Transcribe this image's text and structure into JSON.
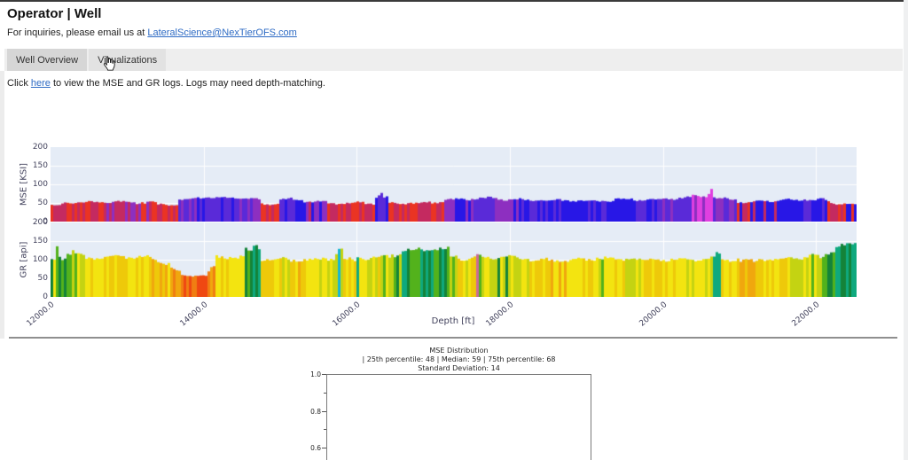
{
  "window": {
    "title": "Operator | Well",
    "contact_prefix": "For inquiries, please email us at ",
    "contact_email": "LateralScience@NexTierOFS.com"
  },
  "tabs": {
    "items": [
      {
        "label": "Well Overview",
        "active": true
      },
      {
        "label": "Visualizations",
        "active": false,
        "cursor_over": true
      }
    ]
  },
  "note": {
    "prefix": "Click ",
    "link": "here",
    "suffix": " to view the MSE and GR logs. Logs may need depth-matching."
  },
  "colors": {
    "link": "#2e6bc4",
    "plot_background": "#e5ecf6",
    "gridline": "#ffffff",
    "divider": "#8f8f8f",
    "mse_palette": {
      "red": "#ea3423",
      "crimson": "#c42a60",
      "purple": "#8d2fc0",
      "violet": "#5a2ad8",
      "blue": "#2817e6",
      "magenta": "#e03fe0"
    },
    "gr_palette": {
      "yellow": "#f3e410",
      "gold": "#eec90a",
      "olive": "#c4d312",
      "amber": "#f0a70e",
      "orange": "#f07e12",
      "redorange": "#ef4812",
      "green": "#53b21c",
      "darkgreen": "#148339",
      "teal": "#0fa97e",
      "cyan": "#14b6d6",
      "pink": "#c96a9a"
    }
  },
  "chart_data": [
    {
      "id": "mse-log",
      "type": "bar",
      "ylabel": "MSE [KSI]",
      "ylim": [
        0,
        200
      ],
      "yticks": [
        0,
        50,
        100,
        150,
        200
      ],
      "ytick_labels": [
        "0",
        "50",
        "100",
        "150",
        "200"
      ],
      "xlim": [
        12000,
        22530
      ],
      "xticks": [
        12000,
        14000,
        16000,
        18000,
        20000,
        22000
      ],
      "xtick_labels": [
        "12000.0",
        "14000.0",
        "16000.0",
        "18000.0",
        "20000.0",
        "22000.0"
      ],
      "grid": true,
      "palette": "mse_palette",
      "seed": 7.3,
      "segment_format": [
        "depth_start_ft",
        "depth_end_ft",
        "value_start",
        "value_end",
        "noise_amplitude",
        "bar_colors"
      ],
      "segments": [
        [
          12000,
          12160,
          42,
          46,
          5,
          [
            "red",
            "crimson"
          ]
        ],
        [
          12160,
          12700,
          50,
          52,
          4,
          [
            "red",
            "crimson"
          ]
        ],
        [
          12700,
          13060,
          53,
          53,
          4,
          [
            "crimson",
            "purple"
          ]
        ],
        [
          13060,
          13400,
          51,
          51,
          5,
          [
            "purple",
            "crimson",
            "red"
          ]
        ],
        [
          13400,
          13660,
          46,
          46,
          4,
          [
            "red",
            "crimson"
          ]
        ],
        [
          13660,
          13920,
          58,
          62,
          5,
          [
            "purple",
            "violet"
          ]
        ],
        [
          13920,
          14480,
          65,
          65,
          4,
          [
            "blue",
            "violet"
          ]
        ],
        [
          14480,
          14760,
          62,
          58,
          4,
          [
            "violet",
            "purple"
          ]
        ],
        [
          14760,
          14990,
          47,
          47,
          4,
          [
            "red",
            "crimson"
          ]
        ],
        [
          14990,
          15290,
          60,
          60,
          5,
          [
            "blue",
            "violet"
          ]
        ],
        [
          15290,
          15620,
          54,
          54,
          4,
          [
            "crimson",
            "purple",
            "blue"
          ]
        ],
        [
          15620,
          15990,
          49,
          49,
          4,
          [
            "red",
            "crimson"
          ]
        ],
        [
          15990,
          16250,
          50,
          50,
          5,
          [
            "red",
            "crimson"
          ]
        ],
        [
          16250,
          16330,
          62,
          78,
          8,
          [
            "blue",
            "violet"
          ]
        ],
        [
          16330,
          16430,
          70,
          56,
          8,
          [
            "blue",
            "violet"
          ]
        ],
        [
          16430,
          16910,
          50,
          50,
          4,
          [
            "red",
            "crimson"
          ]
        ],
        [
          16910,
          17160,
          52,
          52,
          5,
          [
            "red",
            "crimson"
          ]
        ],
        [
          17160,
          17510,
          59,
          61,
          5,
          [
            "blue",
            "purple"
          ]
        ],
        [
          17510,
          17820,
          63,
          63,
          5,
          [
            "violet",
            "purple"
          ]
        ],
        [
          17820,
          18160,
          62,
          60,
          6,
          [
            "purple",
            "blue"
          ]
        ],
        [
          18160,
          18660,
          58,
          58,
          4,
          [
            "blue",
            "violet"
          ]
        ],
        [
          18660,
          19310,
          56,
          56,
          4,
          [
            "blue",
            "blue",
            "violet"
          ]
        ],
        [
          19310,
          19630,
          58,
          62,
          7,
          [
            "blue"
          ]
        ],
        [
          19630,
          20010,
          58,
          58,
          4,
          [
            "blue",
            "violet"
          ]
        ],
        [
          20010,
          20360,
          62,
          64,
          5,
          [
            "purple",
            "violet"
          ]
        ],
        [
          20360,
          20560,
          66,
          70,
          6,
          [
            "magenta",
            "purple"
          ]
        ],
        [
          20560,
          20650,
          74,
          88,
          10,
          [
            "magenta"
          ]
        ],
        [
          20650,
          20960,
          64,
          60,
          5,
          [
            "purple",
            "violet"
          ]
        ],
        [
          20960,
          21210,
          52,
          52,
          5,
          [
            "crimson",
            "red",
            "blue"
          ]
        ],
        [
          21210,
          21510,
          55,
          55,
          4,
          [
            "red",
            "blue",
            "crimson"
          ]
        ],
        [
          21510,
          21810,
          58,
          58,
          4,
          [
            "blue"
          ]
        ],
        [
          21810,
          22160,
          60,
          58,
          5,
          [
            "blue",
            "violet"
          ]
        ],
        [
          22160,
          22360,
          52,
          48,
          5,
          [
            "red",
            "crimson"
          ]
        ],
        [
          22360,
          22530,
          50,
          46,
          5,
          [
            "red",
            "blue"
          ]
        ]
      ]
    },
    {
      "id": "gr-log",
      "type": "bar",
      "ylabel": "GR [api]",
      "ylim": [
        0,
        200
      ],
      "yticks": [
        0,
        50,
        100,
        150,
        200
      ],
      "ytick_labels": [
        "0",
        "50",
        "100",
        "150",
        "200"
      ],
      "xlim": [
        12000,
        22530
      ],
      "xticks": [
        12000,
        14000,
        16000,
        18000,
        20000,
        22000
      ],
      "xtick_labels": [
        "12000.0",
        "14000.0",
        "16000.0",
        "18000.0",
        "20000.0",
        "22000.0"
      ],
      "xlabel": "Depth [ft]",
      "grid": true,
      "palette": "gr_palette",
      "seed": 2.8,
      "segment_format": [
        "depth_start_ft",
        "depth_end_ft",
        "value_start",
        "value_end",
        "noise_amplitude",
        "bar_colors"
      ],
      "segments": [
        [
          12000,
          12060,
          95,
          95,
          14,
          [
            "olive",
            "yellow",
            "darkgreen"
          ]
        ],
        [
          12060,
          12110,
          135,
          150,
          15,
          [
            "teal",
            "green"
          ]
        ],
        [
          12110,
          12210,
          108,
          108,
          18,
          [
            "green",
            "olive",
            "darkgreen"
          ]
        ],
        [
          12210,
          12330,
          118,
          118,
          16,
          [
            "teal",
            "green",
            "olive"
          ]
        ],
        [
          12330,
          12440,
          112,
          112,
          10,
          [
            "green",
            "olive",
            "yellow"
          ]
        ],
        [
          12440,
          12710,
          105,
          105,
          6,
          [
            "yellow",
            "gold"
          ]
        ],
        [
          12710,
          13010,
          108,
          108,
          6,
          [
            "yellow",
            "gold",
            "olive"
          ]
        ],
        [
          13010,
          13310,
          107,
          107,
          6,
          [
            "yellow",
            "gold"
          ]
        ],
        [
          13310,
          13560,
          100,
          88,
          7,
          [
            "yellow",
            "amber",
            "gold"
          ]
        ],
        [
          13560,
          13700,
          82,
          62,
          7,
          [
            "orange",
            "amber"
          ]
        ],
        [
          13700,
          14060,
          57,
          57,
          5,
          [
            "redorange",
            "orange"
          ]
        ],
        [
          14060,
          14170,
          62,
          92,
          8,
          [
            "orange",
            "amber"
          ]
        ],
        [
          14170,
          14450,
          108,
          108,
          7,
          [
            "yellow",
            "gold"
          ]
        ],
        [
          14450,
          14550,
          104,
          104,
          9,
          [
            "olive",
            "yellow"
          ]
        ],
        [
          14550,
          14650,
          122,
          122,
          13,
          [
            "darkgreen",
            "green"
          ]
        ],
        [
          14650,
          14760,
          138,
          138,
          13,
          [
            "teal",
            "darkgreen"
          ]
        ],
        [
          14760,
          15010,
          100,
          100,
          7,
          [
            "yellow",
            "gold"
          ]
        ],
        [
          15010,
          15130,
          104,
          104,
          9,
          [
            "yellow",
            "olive"
          ]
        ],
        [
          15130,
          15270,
          99,
          99,
          7,
          [
            "yellow",
            "gold",
            "amber"
          ]
        ],
        [
          15270,
          15490,
          100,
          100,
          7,
          [
            "yellow",
            "gold"
          ]
        ],
        [
          15490,
          15710,
          104,
          104,
          8,
          [
            "yellow",
            "olive"
          ]
        ],
        [
          15710,
          15830,
          120,
          120,
          25,
          [
            "cyan",
            "teal",
            "olive"
          ]
        ],
        [
          15830,
          15990,
          100,
          100,
          7,
          [
            "yellow",
            "gold"
          ]
        ],
        [
          15990,
          16110,
          122,
          122,
          24,
          [
            "cyan",
            "teal",
            "yellow"
          ]
        ],
        [
          16110,
          16310,
          104,
          104,
          7,
          [
            "yellow",
            "olive",
            "gold"
          ]
        ],
        [
          16310,
          16450,
          110,
          110,
          9,
          [
            "olive",
            "green",
            "yellow"
          ]
        ],
        [
          16450,
          16570,
          116,
          116,
          10,
          [
            "green",
            "darkgreen",
            "olive"
          ]
        ],
        [
          16570,
          16890,
          126,
          126,
          9,
          [
            "darkgreen",
            "green",
            "teal"
          ]
        ],
        [
          16890,
          17210,
          128,
          128,
          9,
          [
            "darkgreen",
            "teal",
            "green"
          ]
        ],
        [
          17210,
          17330,
          110,
          110,
          9,
          [
            "green",
            "olive"
          ]
        ],
        [
          17330,
          17560,
          104,
          104,
          7,
          [
            "yellow",
            "olive",
            "gold"
          ]
        ],
        [
          17560,
          17585,
          112,
          112,
          5,
          [
            "pink"
          ]
        ],
        [
          17585,
          17810,
          107,
          107,
          7,
          [
            "olive",
            "green",
            "yellow"
          ]
        ],
        [
          17810,
          18010,
          110,
          110,
          9,
          [
            "darkgreen",
            "olive",
            "yellow"
          ]
        ],
        [
          18010,
          18260,
          104,
          104,
          7,
          [
            "yellow",
            "olive"
          ]
        ],
        [
          18260,
          18510,
          100,
          100,
          6,
          [
            "yellow",
            "gold"
          ]
        ],
        [
          18510,
          18810,
          98,
          98,
          7,
          [
            "yellow",
            "gold",
            "amber"
          ]
        ],
        [
          18810,
          19110,
          100,
          100,
          6,
          [
            "yellow",
            "gold"
          ]
        ],
        [
          19110,
          19260,
          106,
          106,
          7,
          [
            "olive",
            "yellow",
            "green"
          ]
        ],
        [
          19260,
          19510,
          101,
          101,
          6,
          [
            "yellow",
            "gold"
          ]
        ],
        [
          19510,
          19710,
          104,
          104,
          7,
          [
            "yellow",
            "olive"
          ]
        ],
        [
          19710,
          20310,
          100,
          100,
          6,
          [
            "yellow",
            "gold"
          ]
        ],
        [
          20310,
          20610,
          101,
          101,
          7,
          [
            "yellow",
            "gold",
            "olive"
          ]
        ],
        [
          20610,
          20760,
          108,
          108,
          14,
          [
            "teal",
            "yellow",
            "olive"
          ]
        ],
        [
          20760,
          21010,
          100,
          100,
          7,
          [
            "yellow",
            "gold"
          ]
        ],
        [
          21010,
          21260,
          96,
          96,
          7,
          [
            "yellow",
            "amber",
            "gold"
          ]
        ],
        [
          21260,
          21610,
          101,
          101,
          6,
          [
            "yellow",
            "gold"
          ]
        ],
        [
          21610,
          21910,
          104,
          104,
          7,
          [
            "yellow",
            "olive"
          ]
        ],
        [
          21910,
          22110,
          107,
          107,
          9,
          [
            "olive",
            "green",
            "yellow"
          ]
        ],
        [
          22110,
          22260,
          120,
          128,
          10,
          [
            "green",
            "darkgreen"
          ]
        ],
        [
          22260,
          22530,
          138,
          142,
          7,
          [
            "teal",
            "darkgreen"
          ]
        ]
      ]
    },
    {
      "id": "mse-distribution",
      "type": "histogram",
      "title": "MSE Distribution",
      "subtitle1": "| 25th percentile: 48 | Median: 59 | 75th percentile: 68",
      "subtitle2": "Standard Deviation: 14",
      "stats": {
        "percentile_25": 48,
        "median": 59,
        "percentile_75": 68,
        "standard_deviation": 14
      },
      "ytick_labels": [
        "1.0",
        "0.8",
        "0.6"
      ],
      "yticks": [
        1.0,
        0.8,
        0.6
      ],
      "yticks_minor": [
        0.9,
        0.7
      ],
      "content_visible": "empty-axes-partially-cut-off"
    }
  ]
}
